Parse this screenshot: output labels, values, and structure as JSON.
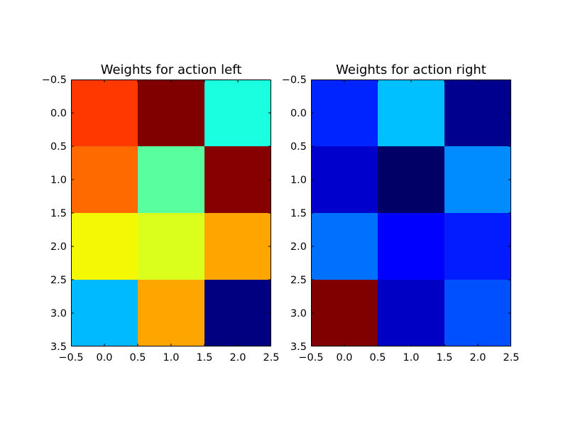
{
  "chart_data": [
    {
      "type": "heatmap",
      "title": "Weights for action left",
      "xlabel": "",
      "ylabel": "",
      "xlim": [
        -0.5,
        2.5
      ],
      "ylim": [
        3.5,
        -0.5
      ],
      "y_inverted": true,
      "grid": false,
      "colormap": "jet",
      "xticks": [
        "−0.5",
        "0.0",
        "0.5",
        "1.0",
        "1.5",
        "2.0",
        "2.5"
      ],
      "yticks": [
        "−0.5",
        "0.0",
        "0.5",
        "1.0",
        "1.5",
        "2.0",
        "2.5",
        "3.0",
        "3.5"
      ],
      "rows": 4,
      "cols": 3,
      "cell_colors": [
        [
          "#ff3800",
          "#800000",
          "#1affe0"
        ],
        [
          "#ff6a00",
          "#59ff9e",
          "#860000"
        ],
        [
          "#f4f802",
          "#dbff1c",
          "#ffa500"
        ],
        [
          "#00baff",
          "#ffa500",
          "#000080"
        ]
      ]
    },
    {
      "type": "heatmap",
      "title": "Weights for action right",
      "xlabel": "",
      "ylabel": "",
      "xlim": [
        -0.5,
        2.5
      ],
      "ylim": [
        3.5,
        -0.5
      ],
      "y_inverted": true,
      "grid": false,
      "colormap": "jet",
      "xticks": [
        "−0.5",
        "0.0",
        "0.5",
        "1.0",
        "1.5",
        "2.0",
        "2.5"
      ],
      "yticks": [
        "−0.5",
        "0.0",
        "0.5",
        "1.0",
        "1.5",
        "2.0",
        "2.5",
        "3.0",
        "3.5"
      ],
      "rows": 4,
      "cols": 3,
      "cell_colors": [
        [
          "#0024ff",
          "#00c0ff",
          "#00008f"
        ],
        [
          "#0000cd",
          "#000066",
          "#008cff"
        ],
        [
          "#0070ff",
          "#0000ff",
          "#001cff"
        ],
        [
          "#800000",
          "#0000c4",
          "#0050ff"
        ]
      ]
    }
  ]
}
